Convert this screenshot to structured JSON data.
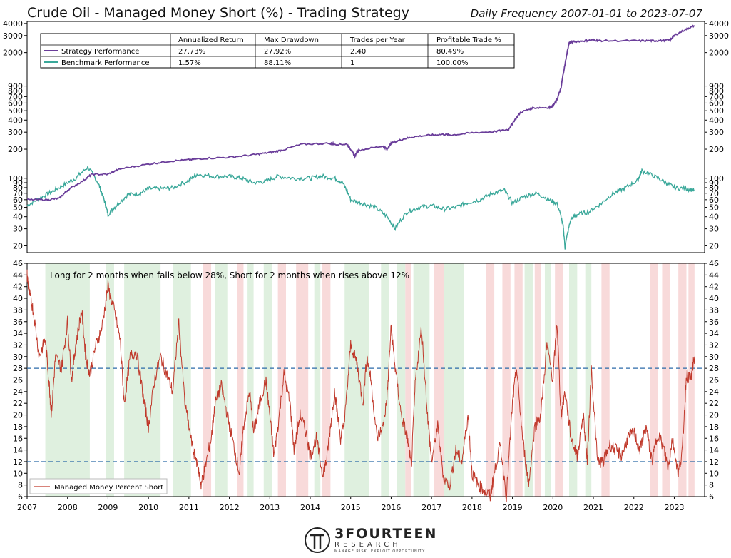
{
  "header": {
    "title": "Crude Oil - Managed Money Short (%) - Trading Strategy",
    "subtitle": "Daily Frequency 2007-01-01 to 2023-07-07"
  },
  "colors": {
    "strategy": "#6a3d9a",
    "benchmark": "#3aa89a",
    "short_series": "#c0392b",
    "threshold": "#2b6aa8",
    "long_band": "#dff0df",
    "short_band": "#f8dada"
  },
  "table": {
    "headers": [
      "",
      "Annualized Return",
      "Max Drawdown",
      "Trades per Year",
      "Profitable Trade %"
    ],
    "rows": [
      {
        "name": "Strategy Performance",
        "cells": [
          "27.73%",
          "27.92%",
          "2.40",
          "80.49%"
        ]
      },
      {
        "name": "Benchmark Performance",
        "cells": [
          "1.57%",
          "88.11%",
          "1",
          "100.00%"
        ]
      }
    ]
  },
  "annotation": "Long for 2 months when falls below 28%, Short for 2 months when rises above 12%",
  "legend_label": "Managed Money Percent Short",
  "logo": {
    "name": "3FOURTEEN",
    "sub": "RESEARCH",
    "tagline": "MANAGE RISK. EXPLOIT OPPORTUNITY."
  },
  "chart_data": [
    {
      "type": "line",
      "scale": "log",
      "ylim": [
        17,
        4200
      ],
      "y_ticks": [
        20,
        30,
        40,
        50,
        60,
        70,
        80,
        90,
        100,
        200,
        300,
        400,
        500,
        600,
        700,
        800,
        900,
        2000,
        3000,
        4000
      ],
      "y_tick_labels": [
        "20",
        "30",
        "40",
        "50",
        "60",
        "70",
        "80",
        "90",
        "100",
        "200",
        "300",
        "400",
        "500",
        "600",
        "700",
        "800",
        "900",
        "2000",
        "3000",
        "4000"
      ],
      "series": [
        {
          "name": "Strategy Performance",
          "x": [
            2007.0,
            2007.5,
            2007.8,
            2008.0,
            2008.4,
            2008.6,
            2009.0,
            2009.3,
            2010.0,
            2010.5,
            2011.0,
            2011.3,
            2012.0,
            2012.6,
            2013.0,
            2013.3,
            2013.8,
            2014.5,
            2014.6,
            2014.9,
            2015.0,
            2015.1,
            2015.2,
            2015.8,
            2015.9,
            2016.0,
            2016.3,
            2016.6,
            2017.0,
            2017.3,
            2017.5,
            2018.0,
            2018.6,
            2018.9,
            2019.0,
            2019.2,
            2019.5,
            2019.9,
            2020.0,
            2020.1,
            2020.2,
            2020.3,
            2020.4,
            2020.5,
            2020.8,
            2021.0,
            2021.2,
            2022.0,
            2022.4,
            2022.6,
            2022.9,
            2023.0,
            2023.3,
            2023.5
          ],
          "values": [
            60,
            60,
            62,
            75,
            95,
            110,
            110,
            125,
            140,
            150,
            155,
            160,
            165,
            175,
            185,
            195,
            225,
            230,
            225,
            225,
            200,
            170,
            195,
            215,
            200,
            230,
            255,
            270,
            280,
            285,
            280,
            295,
            305,
            320,
            370,
            480,
            535,
            540,
            560,
            650,
            850,
            1500,
            2500,
            2600,
            2650,
            2700,
            2650,
            2650,
            2650,
            2650,
            2700,
            3000,
            3500,
            3800
          ]
        },
        {
          "name": "Benchmark Performance",
          "x": [
            2007.0,
            2007.3,
            2007.6,
            2007.9,
            2008.2,
            2008.5,
            2008.75,
            2008.9,
            2009.0,
            2009.2,
            2009.5,
            2009.8,
            2010.0,
            2010.3,
            2010.6,
            2011.0,
            2011.2,
            2011.6,
            2012.0,
            2012.3,
            2012.6,
            2012.9,
            2013.2,
            2013.6,
            2014.0,
            2014.3,
            2014.6,
            2014.8,
            2015.0,
            2015.3,
            2015.6,
            2015.9,
            2016.1,
            2016.4,
            2016.7,
            2017.0,
            2017.3,
            2017.6,
            2017.9,
            2018.2,
            2018.5,
            2018.8,
            2019.0,
            2019.3,
            2019.6,
            2019.9,
            2020.1,
            2020.25,
            2020.3,
            2020.45,
            2020.6,
            2020.9,
            2021.2,
            2021.5,
            2021.8,
            2022.1,
            2022.2,
            2022.5,
            2022.8,
            2023.0,
            2023.3,
            2023.5
          ],
          "values": [
            52,
            62,
            72,
            85,
            100,
            130,
            90,
            60,
            42,
            52,
            68,
            70,
            78,
            78,
            80,
            95,
            110,
            105,
            105,
            100,
            90,
            93,
            105,
            100,
            100,
            105,
            100,
            90,
            60,
            55,
            50,
            40,
            30,
            45,
            50,
            52,
            48,
            50,
            56,
            60,
            70,
            75,
            55,
            65,
            70,
            60,
            55,
            32,
            19,
            38,
            42,
            45,
            55,
            70,
            80,
            95,
            120,
            105,
            90,
            80,
            78,
            75
          ]
        }
      ]
    },
    {
      "type": "line",
      "ylim": [
        6,
        46
      ],
      "y_ticks": [
        6,
        8,
        10,
        12,
        14,
        16,
        18,
        20,
        22,
        24,
        26,
        28,
        30,
        32,
        34,
        36,
        38,
        40,
        42,
        44,
        46
      ],
      "x_ticks": [
        2007,
        2008,
        2009,
        2010,
        2011,
        2012,
        2013,
        2014,
        2015,
        2016,
        2017,
        2018,
        2019,
        2020,
        2021,
        2022,
        2023
      ],
      "x_tick_labels": [
        "2007",
        "2008",
        "2009",
        "2010",
        "2011",
        "2012",
        "2013",
        "2014",
        "2015",
        "2016",
        "2017",
        "2018",
        "2019",
        "2020",
        "2021",
        "2022",
        "2023"
      ],
      "thresholds": [
        28,
        12
      ],
      "series": [
        {
          "name": "Managed Money Percent Short",
          "x": [
            2007.0,
            2007.05,
            2007.15,
            2007.3,
            2007.45,
            2007.55,
            2007.6,
            2007.7,
            2007.85,
            2008.0,
            2008.1,
            2008.2,
            2008.35,
            2008.45,
            2008.55,
            2008.7,
            2008.85,
            2009.0,
            2009.15,
            2009.3,
            2009.4,
            2009.55,
            2009.7,
            2009.9,
            2010.0,
            2010.15,
            2010.3,
            2010.45,
            2010.6,
            2010.75,
            2010.9,
            2011.1,
            2011.2,
            2011.3,
            2011.4,
            2011.55,
            2011.65,
            2011.8,
            2011.95,
            2012.1,
            2012.25,
            2012.35,
            2012.5,
            2012.6,
            2012.75,
            2012.9,
            2013.0,
            2013.1,
            2013.2,
            2013.35,
            2013.5,
            2013.6,
            2013.75,
            2013.9,
            2014.0,
            2014.15,
            2014.3,
            2014.4,
            2014.5,
            2014.6,
            2014.75,
            2014.85,
            2015.0,
            2015.15,
            2015.3,
            2015.4,
            2015.5,
            2015.65,
            2015.8,
            2015.9,
            2016.0,
            2016.1,
            2016.25,
            2016.4,
            2016.5,
            2016.6,
            2016.75,
            2016.9,
            2017.0,
            2017.15,
            2017.3,
            2017.45,
            2017.6,
            2017.75,
            2017.9,
            2018.0,
            2018.15,
            2018.3,
            2018.45,
            2018.55,
            2018.7,
            2018.85,
            2019.0,
            2019.1,
            2019.25,
            2019.4,
            2019.55,
            2019.7,
            2019.85,
            2020.0,
            2020.1,
            2020.2,
            2020.3,
            2020.45,
            2020.6,
            2020.75,
            2020.85,
            2020.95,
            2021.1,
            2021.25,
            2021.4,
            2021.55,
            2021.7,
            2021.85,
            2022.0,
            2022.15,
            2022.3,
            2022.45,
            2022.6,
            2022.75,
            2022.85,
            2022.95,
            2023.1,
            2023.2,
            2023.3,
            2023.4,
            2023.5
          ],
          "values": [
            44,
            41,
            38,
            30,
            33,
            25,
            20,
            30,
            28,
            36,
            26,
            32,
            38,
            30,
            27,
            32,
            35,
            42,
            38,
            33,
            22,
            30,
            31,
            22,
            18,
            26,
            30,
            27,
            24,
            36,
            22,
            14,
            12,
            8,
            11,
            16,
            22,
            25,
            20,
            15,
            10,
            18,
            24,
            17,
            22,
            26,
            20,
            13,
            18,
            27,
            22,
            14,
            20,
            17,
            13,
            16,
            10,
            12,
            18,
            24,
            16,
            19,
            32,
            29,
            22,
            30,
            26,
            16,
            18,
            23,
            35,
            28,
            20,
            16,
            11,
            26,
            35,
            20,
            12,
            18,
            9,
            8,
            14,
            12,
            20,
            10,
            8,
            7,
            6,
            10,
            15,
            6,
            22,
            28,
            16,
            8,
            18,
            20,
            32,
            26,
            36,
            20,
            24,
            16,
            13,
            20,
            12,
            28,
            12,
            12,
            15,
            14,
            13,
            16,
            17,
            14,
            18,
            12,
            17,
            14,
            11,
            16,
            10,
            14,
            27,
            26,
            30
          ]
        }
      ],
      "long_bands": [
        [
          2007.45,
          2008.55
        ],
        [
          2008.95,
          2009.15
        ],
        [
          2009.4,
          2010.3
        ],
        [
          2010.6,
          2011.05
        ],
        [
          2011.65,
          2011.95
        ],
        [
          2012.45,
          2012.6
        ],
        [
          2012.85,
          2013.05
        ],
        [
          2014.1,
          2014.25
        ],
        [
          2014.85,
          2015.45
        ],
        [
          2015.75,
          2015.95
        ],
        [
          2016.15,
          2016.35
        ],
        [
          2016.55,
          2016.95
        ],
        [
          2017.3,
          2017.8
        ],
        [
          2019.3,
          2019.5
        ],
        [
          2019.8,
          2019.95
        ],
        [
          2020.4,
          2020.6
        ],
        [
          2020.8,
          2020.95
        ]
      ],
      "short_bands": [
        [
          2011.35,
          2011.55
        ],
        [
          2012.2,
          2012.35
        ],
        [
          2013.2,
          2013.4
        ],
        [
          2013.65,
          2013.95
        ],
        [
          2014.3,
          2014.5
        ],
        [
          2016.35,
          2016.5
        ],
        [
          2017.05,
          2017.3
        ],
        [
          2018.35,
          2018.55
        ],
        [
          2018.75,
          2018.95
        ],
        [
          2019.05,
          2019.25
        ],
        [
          2019.55,
          2019.7
        ],
        [
          2020.05,
          2020.25
        ],
        [
          2021.2,
          2021.4
        ],
        [
          2022.4,
          2022.6
        ],
        [
          2022.7,
          2022.9
        ],
        [
          2023.1,
          2023.3
        ],
        [
          2023.35,
          2023.5
        ]
      ]
    }
  ]
}
